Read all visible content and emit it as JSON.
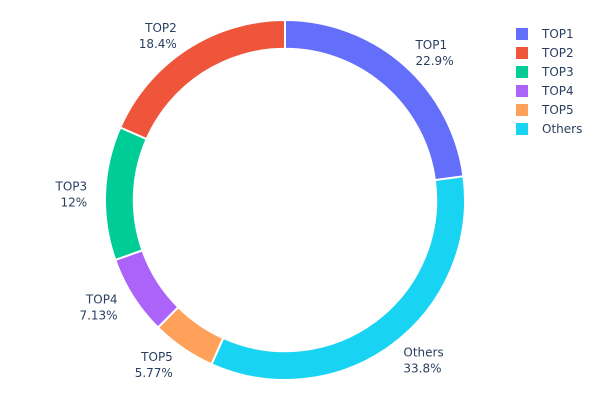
{
  "chart_data": {
    "type": "pie",
    "hole": 0.84,
    "direction": "clockwise",
    "start": "top",
    "slices": [
      {
        "label": "TOP1",
        "value": 22.9,
        "text": "22.9%",
        "color": "#636efa"
      },
      {
        "label": "Others",
        "value": 33.8,
        "text": "33.8%",
        "color": "#19d3f3"
      },
      {
        "label": "TOP5",
        "value": 5.77,
        "text": "5.77%",
        "color": "#FFA15A"
      },
      {
        "label": "TOP4",
        "value": 7.13,
        "text": "7.13%",
        "color": "#ab63fa"
      },
      {
        "label": "TOP3",
        "value": 12,
        "text": "12%",
        "color": "#00cc96"
      },
      {
        "label": "TOP2",
        "value": 18.4,
        "text": "18.4%",
        "color": "#EF553B"
      }
    ],
    "legend": {
      "position": "top-right",
      "items": [
        {
          "label": "TOP1",
          "color": "#636efa"
        },
        {
          "label": "TOP2",
          "color": "#EF553B"
        },
        {
          "label": "TOP3",
          "color": "#00cc96"
        },
        {
          "label": "TOP4",
          "color": "#ab63fa"
        },
        {
          "label": "TOP5",
          "color": "#FFA15A"
        },
        {
          "label": "Others",
          "color": "#19d3f3"
        }
      ]
    }
  }
}
